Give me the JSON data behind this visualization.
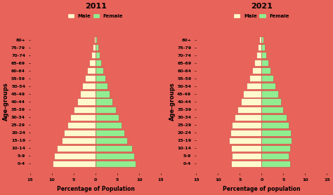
{
  "age_groups": [
    "0-4",
    "5-9",
    "10-14",
    "15-19",
    "20-24",
    "25-29",
    "30-34",
    "35-39",
    "40-44",
    "45-49",
    "50-54",
    "55-59",
    "60-64",
    "65-69",
    "70-74",
    "75-79",
    "80+"
  ],
  "year1": {
    "title": "2011",
    "male": [
      9.8,
      9.5,
      8.8,
      7.8,
      7.2,
      6.5,
      5.8,
      5.0,
      4.2,
      3.5,
      3.0,
      2.5,
      2.0,
      1.4,
      1.0,
      0.7,
      0.4
    ],
    "female": [
      9.2,
      8.9,
      8.3,
      7.2,
      6.6,
      6.0,
      5.3,
      4.6,
      3.9,
      3.2,
      2.8,
      2.3,
      1.8,
      1.3,
      0.9,
      0.6,
      0.3
    ],
    "xlabel": "Percentage of Population"
  },
  "year2": {
    "title": "2021",
    "male": [
      7.0,
      6.8,
      7.0,
      7.5,
      7.2,
      6.8,
      6.2,
      5.5,
      4.8,
      4.2,
      3.5,
      2.8,
      2.2,
      1.7,
      1.2,
      0.8,
      0.5
    ],
    "female": [
      6.5,
      6.3,
      6.5,
      6.9,
      6.7,
      6.3,
      5.7,
      5.0,
      4.4,
      3.8,
      3.2,
      2.6,
      2.0,
      1.5,
      1.1,
      0.7,
      0.5
    ],
    "xlabel": "Percentage of population"
  },
  "male_color": "#FFFACD",
  "female_color": "#90EE90",
  "bar_edge_color": "#cc4444",
  "background_color": "#E8635A",
  "text_color": "black",
  "ylabel": "Age-groups",
  "xlim": 15
}
